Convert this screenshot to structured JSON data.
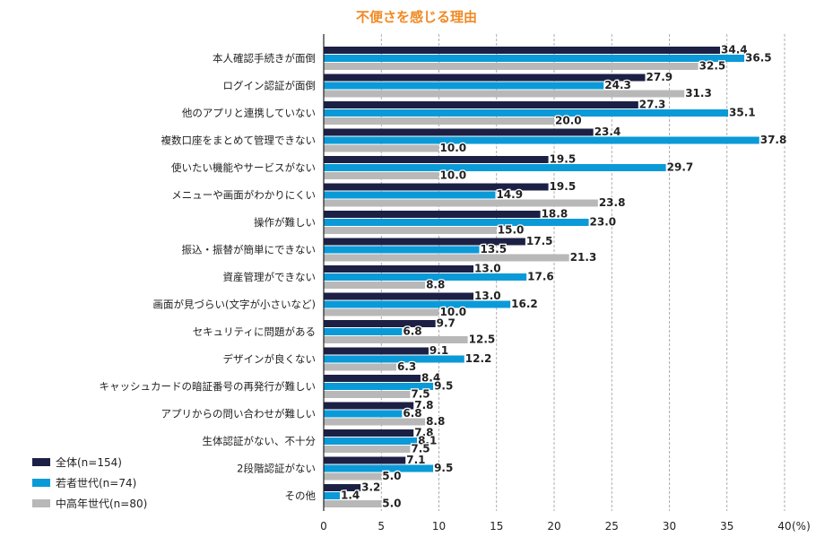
{
  "chart_data": {
    "type": "bar",
    "orientation": "horizontal",
    "title": "不便さを感じる理由",
    "unit_label": "(%)",
    "xlim": [
      0,
      40
    ],
    "xticks": [
      0,
      5,
      10,
      15,
      20,
      25,
      30,
      35,
      40
    ],
    "xtick_labels": [
      "0",
      "5",
      "10",
      "15",
      "20",
      "25",
      "30",
      "35",
      "40"
    ],
    "grid": true,
    "legend_position": "bottom-left",
    "categories": [
      "本人確認手続きが面倒",
      "ログイン認証が面倒",
      "他のアプリと連携していない",
      "複数口座をまとめて管理できない",
      "使いたい機能やサービスがない",
      "メニューや画面がわかりにくい",
      "操作が難しい",
      "振込・振替が簡単にできない",
      "資産管理ができない",
      "画面が見づらい(文字が小さいなど)",
      "セキュリティに問題がある",
      "デザインが良くない",
      "キャッシュカードの暗証番号の再発行が難しい",
      "アプリからの問い合わせが難しい",
      "生体認証がない、不十分",
      "2段階認証がない",
      "その他"
    ],
    "series": [
      {
        "name": "全体(n=154)",
        "color": "#1c2045",
        "values": [
          34.4,
          27.9,
          27.3,
          23.4,
          19.5,
          19.5,
          18.8,
          17.5,
          13.0,
          13.0,
          9.7,
          9.1,
          8.4,
          7.8,
          7.8,
          7.1,
          3.2
        ],
        "labels": [
          "34.4",
          "27.9",
          "27.3",
          "23.4",
          "19.5",
          "19.5",
          "18.8",
          "17.5",
          "13.0",
          "13.0",
          "9.7",
          "9.1",
          "8.4",
          "7.8",
          "7.8",
          "7.1",
          "3.2"
        ]
      },
      {
        "name": "若者世代(n=74)",
        "color": "#0a9ad8",
        "values": [
          36.5,
          24.3,
          35.1,
          37.8,
          29.7,
          14.9,
          23.0,
          13.5,
          17.6,
          16.2,
          6.8,
          12.2,
          9.5,
          6.8,
          8.1,
          9.5,
          1.4
        ],
        "labels": [
          "36.5",
          "24.3",
          "35.1",
          "37.8",
          "29.7",
          "14.9",
          "23.0",
          "13.5",
          "17.6",
          "16.2",
          "6.8",
          "12.2",
          "9.5",
          "6.8",
          "8.1",
          "9.5",
          "1.4"
        ]
      },
      {
        "name": "中高年世代(n=80)",
        "color": "#b8b8b8",
        "values": [
          32.5,
          31.3,
          20.0,
          10.0,
          10.0,
          23.8,
          15.0,
          21.3,
          8.8,
          10.0,
          12.5,
          6.3,
          7.5,
          8.8,
          7.5,
          5.0,
          5.0
        ],
        "labels": [
          "32.5",
          "31.3",
          "20.0",
          "10.0",
          "10.0",
          "23.8",
          "15.0",
          "21.3",
          "8.8",
          "10.0",
          "12.5",
          "6.3",
          "7.5",
          "8.8",
          "7.5",
          "5.0",
          "5.0"
        ]
      }
    ]
  }
}
